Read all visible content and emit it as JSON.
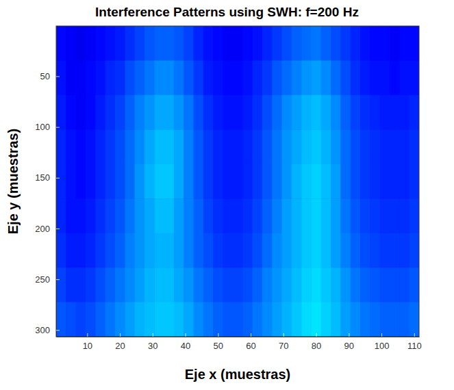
{
  "chart_data": {
    "type": "heatmap",
    "title": "Interference Patterns using SWH: f=200 Hz",
    "x_label": "Eje x (muestras)",
    "y_label": "Eje y (muestras)",
    "xlim": [
      0.5,
      111.5
    ],
    "ylim": [
      0.5,
      306.5
    ],
    "xticks": [
      10,
      20,
      30,
      40,
      50,
      60,
      70,
      80,
      90,
      100,
      110
    ],
    "yticks": [
      50,
      100,
      150,
      200,
      250,
      300
    ],
    "color_range": [
      0,
      1
    ],
    "x_edges": [
      0.5,
      3.5,
      6.5,
      9.5,
      12.5,
      15.5,
      18.5,
      21.5,
      24.5,
      27.5,
      30.5,
      33.5,
      36.5,
      39.5,
      42.5,
      45.5,
      48.5,
      51.5,
      54.5,
      57.5,
      60.5,
      63.5,
      66.5,
      69.5,
      72.5,
      75.5,
      78.5,
      81.5,
      84.5,
      87.5,
      90.5,
      93.5,
      96.5,
      99.5,
      102.5,
      105.5,
      108.5,
      111.5
    ],
    "y_edges": [
      0.5,
      34.5,
      68.5,
      102.5,
      136.5,
      170.5,
      204.5,
      238.5,
      272.5,
      306.5
    ],
    "cells": [
      [
        0.13,
        0.12,
        0.11,
        0.12,
        0.13,
        0.14,
        0.15,
        0.17,
        0.19,
        0.21,
        0.22,
        0.22,
        0.21,
        0.19,
        0.16,
        0.14,
        0.13,
        0.12,
        0.12,
        0.13,
        0.14,
        0.16,
        0.18,
        0.2,
        0.22,
        0.23,
        0.24,
        0.22,
        0.2,
        0.18,
        0.16,
        0.14,
        0.13,
        0.13,
        0.12,
        0.13,
        0.13
      ],
      [
        0.14,
        0.12,
        0.12,
        0.13,
        0.14,
        0.16,
        0.17,
        0.2,
        0.22,
        0.24,
        0.26,
        0.26,
        0.24,
        0.21,
        0.18,
        0.15,
        0.14,
        0.13,
        0.13,
        0.14,
        0.16,
        0.18,
        0.21,
        0.23,
        0.25,
        0.27,
        0.28,
        0.26,
        0.23,
        0.2,
        0.17,
        0.15,
        0.14,
        0.14,
        0.13,
        0.14,
        0.14
      ],
      [
        0.15,
        0.13,
        0.12,
        0.13,
        0.15,
        0.17,
        0.19,
        0.22,
        0.25,
        0.27,
        0.29,
        0.29,
        0.27,
        0.24,
        0.2,
        0.17,
        0.15,
        0.14,
        0.14,
        0.15,
        0.17,
        0.2,
        0.23,
        0.26,
        0.28,
        0.3,
        0.31,
        0.29,
        0.26,
        0.22,
        0.19,
        0.17,
        0.16,
        0.15,
        0.15,
        0.15,
        0.16
      ],
      [
        0.16,
        0.14,
        0.13,
        0.14,
        0.16,
        0.18,
        0.2,
        0.23,
        0.26,
        0.29,
        0.31,
        0.31,
        0.29,
        0.25,
        0.21,
        0.18,
        0.16,
        0.15,
        0.15,
        0.16,
        0.18,
        0.21,
        0.24,
        0.27,
        0.29,
        0.31,
        0.32,
        0.3,
        0.27,
        0.23,
        0.2,
        0.18,
        0.17,
        0.16,
        0.16,
        0.16,
        0.17
      ],
      [
        0.16,
        0.14,
        0.13,
        0.14,
        0.16,
        0.18,
        0.2,
        0.23,
        0.27,
        0.3,
        0.32,
        0.32,
        0.29,
        0.25,
        0.21,
        0.18,
        0.16,
        0.15,
        0.15,
        0.16,
        0.18,
        0.21,
        0.24,
        0.27,
        0.3,
        0.32,
        0.33,
        0.31,
        0.28,
        0.23,
        0.2,
        0.18,
        0.17,
        0.16,
        0.16,
        0.16,
        0.17
      ],
      [
        0.16,
        0.14,
        0.14,
        0.15,
        0.17,
        0.19,
        0.21,
        0.24,
        0.27,
        0.29,
        0.31,
        0.31,
        0.28,
        0.25,
        0.22,
        0.19,
        0.17,
        0.16,
        0.16,
        0.17,
        0.19,
        0.22,
        0.25,
        0.28,
        0.3,
        0.32,
        0.33,
        0.31,
        0.28,
        0.24,
        0.21,
        0.19,
        0.18,
        0.17,
        0.17,
        0.17,
        0.18
      ],
      [
        0.17,
        0.15,
        0.15,
        0.16,
        0.18,
        0.2,
        0.22,
        0.25,
        0.27,
        0.29,
        0.3,
        0.3,
        0.28,
        0.25,
        0.22,
        0.2,
        0.18,
        0.17,
        0.17,
        0.18,
        0.2,
        0.23,
        0.26,
        0.28,
        0.3,
        0.32,
        0.33,
        0.31,
        0.28,
        0.25,
        0.22,
        0.2,
        0.19,
        0.18,
        0.18,
        0.18,
        0.19
      ],
      [
        0.19,
        0.17,
        0.17,
        0.18,
        0.2,
        0.22,
        0.24,
        0.26,
        0.28,
        0.3,
        0.31,
        0.31,
        0.29,
        0.27,
        0.24,
        0.22,
        0.2,
        0.19,
        0.19,
        0.2,
        0.22,
        0.25,
        0.27,
        0.29,
        0.31,
        0.33,
        0.34,
        0.32,
        0.3,
        0.27,
        0.24,
        0.22,
        0.21,
        0.2,
        0.2,
        0.2,
        0.21
      ],
      [
        0.21,
        0.2,
        0.19,
        0.2,
        0.22,
        0.24,
        0.26,
        0.28,
        0.3,
        0.31,
        0.32,
        0.32,
        0.31,
        0.29,
        0.26,
        0.24,
        0.22,
        0.21,
        0.21,
        0.22,
        0.24,
        0.26,
        0.28,
        0.3,
        0.32,
        0.34,
        0.35,
        0.33,
        0.31,
        0.28,
        0.26,
        0.24,
        0.23,
        0.22,
        0.22,
        0.22,
        0.23
      ]
    ]
  }
}
